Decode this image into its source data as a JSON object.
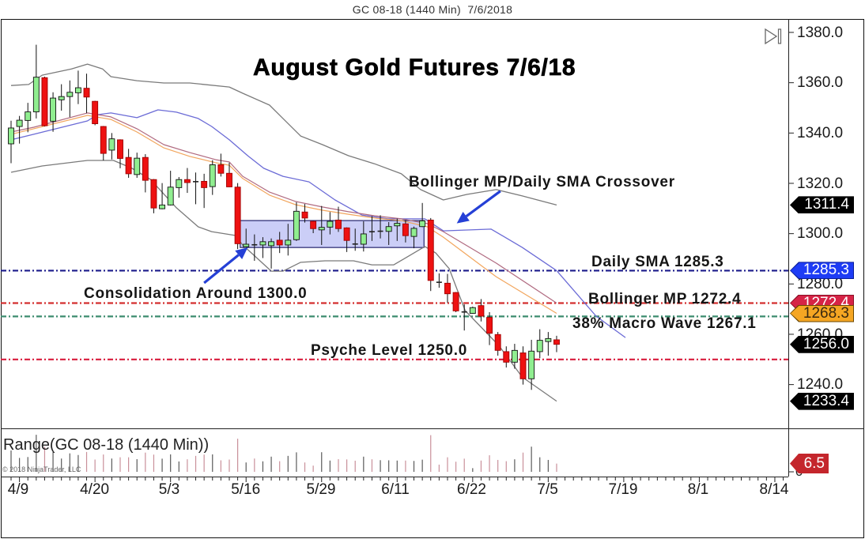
{
  "window": {
    "title": "GC 08-18 (1440 Min)  7/6/2018"
  },
  "toolbar": {
    "scroll_end_icon": "scroll-to-end-icon"
  },
  "annotations": {
    "title": "August Gold Futures 7/6/18",
    "crossover": "Bollinger MP/Daily SMA Crossover",
    "daily_sma": "Daily SMA 1285.3",
    "consolidation": "Consolidation Around 1300.0",
    "bollinger_mp": "Bollinger MP 1272.4",
    "macro_wave": "38% Macro Wave 1267.1",
    "psyche": "Psyche Level 1250.0"
  },
  "price_axis": {
    "ticks": [
      "1380.0",
      "1360.0",
      "1340.0",
      "1320.0",
      "1300.0",
      "1280.0",
      "1260.0",
      "1240.0"
    ]
  },
  "markers": {
    "upper_band": "1311.4",
    "daily_sma": "1285.3",
    "bollinger_mp": "1272.4",
    "ema": "1268.3",
    "last_price": "1256.0",
    "lower_band": "1233.4"
  },
  "date_axis": {
    "labels": [
      "4/9",
      "4/20",
      "5/3",
      "5/16",
      "5/29",
      "6/11",
      "6/22",
      "7/5",
      "7/19",
      "8/1",
      "8/14"
    ]
  },
  "range_pane": {
    "label": "Range(GC 08-18 (1440 Min))",
    "last_value": "6.5",
    "zero_label": "0"
  },
  "copyright": "© 2018 NinjaTrader, LLC",
  "colors": {
    "up": "#90ee90",
    "down": "#ee1111",
    "down_border": "#a00000",
    "box_fill": "rgba(160,165,240,0.55)",
    "box_border": "#24246e",
    "arrow": "#2540d6",
    "marker_black": "#000000",
    "marker_blue": "#1e3cf5",
    "marker_red": "#d62346",
    "marker_orange": "#f5a623",
    "marker_range": "#c4262c",
    "range_up": "#5a5a5a",
    "range_down": "#c9909a"
  },
  "chart_data": {
    "type": "candlestick",
    "title": "August Gold Futures 7/6/18",
    "subtitle": "GC 08-18 (1440 Min) 7/6/2018",
    "xlabel": "",
    "ylabel": "",
    "ylim": [
      1222.6,
      1385.3
    ],
    "y_ticks": [
      1380,
      1360,
      1340,
      1320,
      1300,
      1280,
      1260,
      1240
    ],
    "x_tick_labels": [
      "4/9",
      "4/20",
      "5/3",
      "5/16",
      "5/29",
      "6/11",
      "6/22",
      "7/5",
      "7/19",
      "8/1",
      "8/14"
    ],
    "x_tick_label_index": [
      1,
      10,
      19,
      28,
      37,
      46,
      55,
      64,
      73,
      82,
      91
    ],
    "x_axis_length": 93,
    "grid": false,
    "candle_format": [
      "open",
      "high",
      "low",
      "close"
    ],
    "candles": [
      [
        1335.7,
        1344.9,
        1328.0,
        1342.0
      ],
      [
        1342.6,
        1346.8,
        1335.8,
        1345.1
      ],
      [
        1345.0,
        1352.0,
        1340.3,
        1348.4
      ],
      [
        1348.4,
        1375.1,
        1345.8,
        1362.2
      ],
      [
        1362.0,
        1362.4,
        1342.6,
        1342.9
      ],
      [
        1344.7,
        1356.2,
        1340.5,
        1353.9
      ],
      [
        1353.2,
        1359.4,
        1348.9,
        1354.5
      ],
      [
        1354.5,
        1360.9,
        1346.3,
        1356.2
      ],
      [
        1356.0,
        1364.8,
        1351.5,
        1358.0
      ],
      [
        1357.8,
        1363.6,
        1347.9,
        1354.3
      ],
      [
        1352.6,
        1352.8,
        1343.1,
        1343.7
      ],
      [
        1342.6,
        1342.8,
        1329.1,
        1331.9
      ],
      [
        1333.2,
        1340.0,
        1329.5,
        1337.7
      ],
      [
        1337.3,
        1337.5,
        1326.0,
        1329.9
      ],
      [
        1330.3,
        1333.7,
        1322.2,
        1323.8
      ],
      [
        1323.5,
        1332.2,
        1322.2,
        1330.0
      ],
      [
        1330.3,
        1331.6,
        1316.4,
        1321.2
      ],
      [
        1321.5,
        1321.7,
        1308.1,
        1310.2
      ],
      [
        1309.9,
        1320.1,
        1309.7,
        1311.4
      ],
      [
        1311.4,
        1325.0,
        1311.2,
        1318.5
      ],
      [
        1318.3,
        1322.5,
        1314.3,
        1321.5
      ],
      [
        1321.5,
        1326.1,
        1316.2,
        1320.3
      ],
      [
        1320.7,
        1324.3,
        1311.7,
        1320.5
      ],
      [
        1320.8,
        1323.8,
        1310.2,
        1318.3
      ],
      [
        1318.7,
        1329.2,
        1315.4,
        1327.4
      ],
      [
        1327.4,
        1331.8,
        1322.7,
        1324.0
      ],
      [
        1324.0,
        1328.2,
        1318.5,
        1318.6
      ],
      [
        1318.5,
        1320.1,
        1293.9,
        1296.0
      ],
      [
        1294.8,
        1302.0,
        1294.6,
        1295.8
      ],
      [
        1295.6,
        1299.7,
        1289.2,
        1295.4
      ],
      [
        1295.5,
        1298.6,
        1290.3,
        1296.8
      ],
      [
        1295.2,
        1298.1,
        1286.1,
        1296.8
      ],
      [
        1297.4,
        1300.7,
        1292.3,
        1295.5
      ],
      [
        1295.5,
        1303.9,
        1291.3,
        1297.4
      ],
      [
        1297.6,
        1312.5,
        1297.1,
        1308.9
      ],
      [
        1308.6,
        1311.8,
        1304.4,
        1306.2
      ],
      [
        1304.9,
        1305.1,
        1300.2,
        1302.0
      ],
      [
        1301.5,
        1311.0,
        1295.5,
        1302.5
      ],
      [
        1302.6,
        1308.6,
        1299.7,
        1304.9
      ],
      [
        1305.4,
        1310.7,
        1300.7,
        1302.0
      ],
      [
        1302.3,
        1302.5,
        1292.7,
        1297.3
      ],
      [
        1295.9,
        1302.0,
        1293.2,
        1295.7
      ],
      [
        1295.8,
        1304.9,
        1292.9,
        1299.9
      ],
      [
        1300.8,
        1307.0,
        1297.1,
        1300.6
      ],
      [
        1300.8,
        1307.3,
        1298.1,
        1301.0
      ],
      [
        1300.9,
        1304.6,
        1295.5,
        1302.8
      ],
      [
        1303.1,
        1306.0,
        1297.1,
        1304.1
      ],
      [
        1303.9,
        1305.4,
        1296.5,
        1299.2
      ],
      [
        1298.9,
        1302.8,
        1294.2,
        1302.1
      ],
      [
        1302.8,
        1312.2,
        1302.6,
        1305.1
      ],
      [
        1305.4,
        1306.2,
        1277.2,
        1281.4
      ],
      [
        1280.7,
        1284.2,
        1278.5,
        1280.5
      ],
      [
        1280.3,
        1284.0,
        1272.5,
        1276.1
      ],
      [
        1276.6,
        1276.8,
        1268.8,
        1269.3
      ],
      [
        1268.9,
        1271.9,
        1261.5,
        1268.7
      ],
      [
        1268.3,
        1271.0,
        1268.1,
        1270.6
      ],
      [
        1271.4,
        1274.0,
        1265.1,
        1267.2
      ],
      [
        1266.7,
        1268.8,
        1255.7,
        1260.4
      ],
      [
        1259.9,
        1260.9,
        1251.5,
        1253.6
      ],
      [
        1253.1,
        1255.2,
        1246.8,
        1248.9
      ],
      [
        1248.9,
        1256.2,
        1246.3,
        1253.6
      ],
      [
        1252.6,
        1255.2,
        1240.0,
        1242.3
      ],
      [
        1242.3,
        1257.8,
        1237.9,
        1253.3
      ],
      [
        1253.1,
        1262.0,
        1250.5,
        1257.6
      ],
      [
        1257.1,
        1260.9,
        1251.5,
        1258.3
      ],
      [
        1257.8,
        1259.4,
        1252.9,
        1256.0
      ]
    ],
    "indicators": [
      {
        "id": "bollinger-upper",
        "name": "Bollinger Upper",
        "color": "#7a7a7a",
        "width": 1.3,
        "last": 1311.4,
        "points": [
          [
            0,
            1358.9
          ],
          [
            2.1,
            1359.3
          ],
          [
            3.7,
            1363.0
          ],
          [
            7.2,
            1365.5
          ],
          [
            9.1,
            1367.4
          ],
          [
            10.9,
            1365.5
          ],
          [
            11.9,
            1362.4
          ],
          [
            15,
            1360.8
          ],
          [
            18.2,
            1359.9
          ],
          [
            21.3,
            1359.9
          ],
          [
            26,
            1358.3
          ],
          [
            27.6,
            1355.8
          ],
          [
            30.8,
            1351.1
          ],
          [
            32.4,
            1345.8
          ],
          [
            34.5,
            1338.8
          ],
          [
            37.1,
            1335.4
          ],
          [
            40.2,
            1331.0
          ],
          [
            43.3,
            1327.8
          ],
          [
            46.5,
            1323.8
          ],
          [
            48.8,
            1317.5
          ],
          [
            51.5,
            1313.4
          ],
          [
            54.3,
            1315.6
          ],
          [
            57.8,
            1317.5
          ],
          [
            60.9,
            1315.0
          ],
          [
            65,
            1311.4
          ]
        ]
      },
      {
        "id": "bollinger-lower",
        "name": "Bollinger Lower",
        "color": "#7a7a7a",
        "width": 1.3,
        "last": 1233.4,
        "points": [
          [
            0,
            1324.4
          ],
          [
            3.7,
            1326.9
          ],
          [
            9.1,
            1329.1
          ],
          [
            12.2,
            1329.1
          ],
          [
            14.4,
            1326.0
          ],
          [
            16.6,
            1321.6
          ],
          [
            19.7,
            1310.3
          ],
          [
            22.3,
            1302.7
          ],
          [
            23.9,
            1300.8
          ],
          [
            26.7,
            1299.3
          ],
          [
            27.6,
            1295.5
          ],
          [
            31.0,
            1285.1
          ],
          [
            32.4,
            1285.1
          ],
          [
            34.5,
            1288.6
          ],
          [
            37.4,
            1289.2
          ],
          [
            40.8,
            1289.2
          ],
          [
            43,
            1287.6
          ],
          [
            45.6,
            1287.6
          ],
          [
            49.3,
            1294.9
          ],
          [
            50.6,
            1292.3
          ],
          [
            52.2,
            1286.1
          ],
          [
            54.1,
            1269.4
          ],
          [
            58.1,
            1255.6
          ],
          [
            60.9,
            1243.0
          ],
          [
            65,
            1233.4
          ]
        ]
      },
      {
        "id": "daily-sma",
        "name": "Daily SMA",
        "color": "#6b6bd6",
        "width": 1.3,
        "last": 1285.3,
        "points": [
          [
            0,
            1337.3
          ],
          [
            2.7,
            1339.5
          ],
          [
            9.1,
            1344.8
          ],
          [
            10.3,
            1347.3
          ],
          [
            11.9,
            1348.0
          ],
          [
            15,
            1346.1
          ],
          [
            17.5,
            1349.2
          ],
          [
            19.7,
            1348.3
          ],
          [
            22.3,
            1345.8
          ],
          [
            23.9,
            1342.6
          ],
          [
            26,
            1337.3
          ],
          [
            28.2,
            1331.0
          ],
          [
            30.1,
            1326.0
          ],
          [
            32.4,
            1322.8
          ],
          [
            35.5,
            1320.6
          ],
          [
            38.6,
            1313.4
          ],
          [
            41.8,
            1307.4
          ],
          [
            44.9,
            1305.9
          ],
          [
            49.3,
            1305.9
          ],
          [
            51.5,
            1301.1
          ],
          [
            57.2,
            1301.8
          ],
          [
            60.9,
            1294.5
          ],
          [
            65,
            1285.3
          ],
          [
            69.7,
            1267.2
          ],
          [
            73.2,
            1258.7
          ]
        ]
      },
      {
        "id": "bollinger-mp",
        "name": "Bollinger MP",
        "color": "#b06a80",
        "width": 1.2,
        "last": 1272.4,
        "points": [
          [
            0,
            1340.4
          ],
          [
            2.7,
            1342.3
          ],
          [
            9.1,
            1348.0
          ],
          [
            11.9,
            1346.4
          ],
          [
            15,
            1341.7
          ],
          [
            18.2,
            1335.4
          ],
          [
            21.3,
            1332.2
          ],
          [
            24.4,
            1329.4
          ],
          [
            26,
            1328.5
          ],
          [
            27.6,
            1322.8
          ],
          [
            30.8,
            1316.5
          ],
          [
            33.9,
            1312.8
          ],
          [
            37.1,
            1310.6
          ],
          [
            40.2,
            1308.7
          ],
          [
            43.3,
            1307.1
          ],
          [
            46.5,
            1305.9
          ],
          [
            49.6,
            1304.0
          ],
          [
            51.5,
            1300.8
          ],
          [
            57.8,
            1288.3
          ],
          [
            65,
            1272.4
          ]
        ]
      },
      {
        "id": "ema",
        "name": "EMA",
        "color": "#f2a65e",
        "width": 1.2,
        "last": 1268.3,
        "points": [
          [
            0,
            1339.5
          ],
          [
            2.7,
            1341.7
          ],
          [
            9.1,
            1347.0
          ],
          [
            11.9,
            1345.4
          ],
          [
            15,
            1340.4
          ],
          [
            18.2,
            1334.1
          ],
          [
            21.3,
            1330.7
          ],
          [
            24.4,
            1328.2
          ],
          [
            26,
            1327.2
          ],
          [
            27.6,
            1321.9
          ],
          [
            30.8,
            1315.3
          ],
          [
            33.9,
            1311.5
          ],
          [
            37.1,
            1309.3
          ],
          [
            40.2,
            1307.7
          ],
          [
            43.3,
            1306.2
          ],
          [
            46.5,
            1305.2
          ],
          [
            49.6,
            1302.7
          ],
          [
            51.5,
            1298.6
          ],
          [
            57.8,
            1282.9
          ],
          [
            65,
            1268.3
          ]
        ]
      }
    ],
    "levels": [
      {
        "id": "daily-sma",
        "label": "Daily SMA 1285.3",
        "value": 1285.3,
        "color": "#1b1b8a"
      },
      {
        "id": "bollinger-mp",
        "label": "Bollinger MP 1272.4",
        "value": 1272.4,
        "color": "#d32f2f"
      },
      {
        "id": "macro-wave",
        "label": "38% Macro Wave 1267.1",
        "value": 1267.1,
        "color": "#3b8c6e"
      },
      {
        "id": "psyche",
        "label": "Psyche Level 1250.0",
        "value": 1250.0,
        "color": "#d81b3c"
      }
    ],
    "consolidation_box": {
      "label": "Consolidation Around 1300.0",
      "start_index": 27.3,
      "end_index": 49.2,
      "top": 1305.2,
      "bottom": 1294.5
    },
    "arrows": [
      {
        "id": "consolidation-arrow",
        "tail": [
          23.0,
          1280.4
        ],
        "head": [
          28.2,
          1294.5
        ]
      },
      {
        "id": "crossover-arrow",
        "tail": [
          58.3,
          1316.9
        ],
        "head": [
          53.1,
          1304.1
        ]
      }
    ],
    "range_pane": {
      "label": "Range(GC 08-18 (1440 Min))",
      "last": 6.5,
      "values": [
        16.9,
        11.0,
        11.7,
        29.3,
        19.8,
        15.7,
        10.5,
        14.6,
        13.3,
        15.7,
        9.7,
        13.7,
        10.5,
        11.5,
        11.5,
        10.0,
        15.2,
        13.6,
        10.4,
        13.8,
        8.2,
        9.9,
        12.6,
        13.6,
        13.8,
        9.1,
        9.7,
        26.2,
        7.4,
        10.5,
        8.3,
        12.0,
        8.4,
        12.6,
        15.4,
        7.4,
        4.9,
        15.5,
        8.9,
        10.0,
        9.8,
        8.8,
        12.0,
        9.9,
        9.2,
        9.1,
        8.9,
        8.9,
        8.6,
        9.6,
        29.0,
        5.7,
        11.5,
        8.0,
        10.4,
        2.9,
        8.9,
        13.1,
        9.4,
        8.4,
        9.9,
        15.2,
        19.9,
        11.5,
        9.4,
        6.5
      ]
    },
    "last_price": 1256.0
  }
}
